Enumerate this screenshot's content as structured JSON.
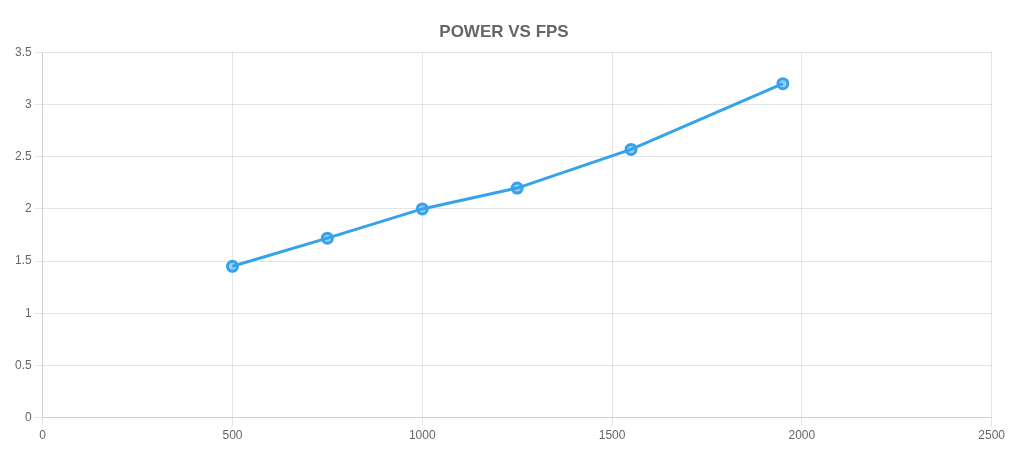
{
  "chart_data": {
    "type": "line",
    "title": "POWER VS FPS",
    "x": [
      500,
      750,
      1000,
      1250,
      1550,
      1950
    ],
    "values": [
      1.45,
      1.72,
      2.0,
      2.2,
      2.57,
      3.2
    ],
    "xlim": [
      0,
      2500
    ],
    "xticks": [
      0,
      500,
      1000,
      1500,
      2000,
      2500
    ],
    "ylim": [
      0,
      3.5
    ],
    "yticks": [
      0,
      0.5,
      1.0,
      1.5,
      2.0,
      2.5,
      3.0,
      3.5
    ],
    "grid": true,
    "marker": "circle"
  }
}
